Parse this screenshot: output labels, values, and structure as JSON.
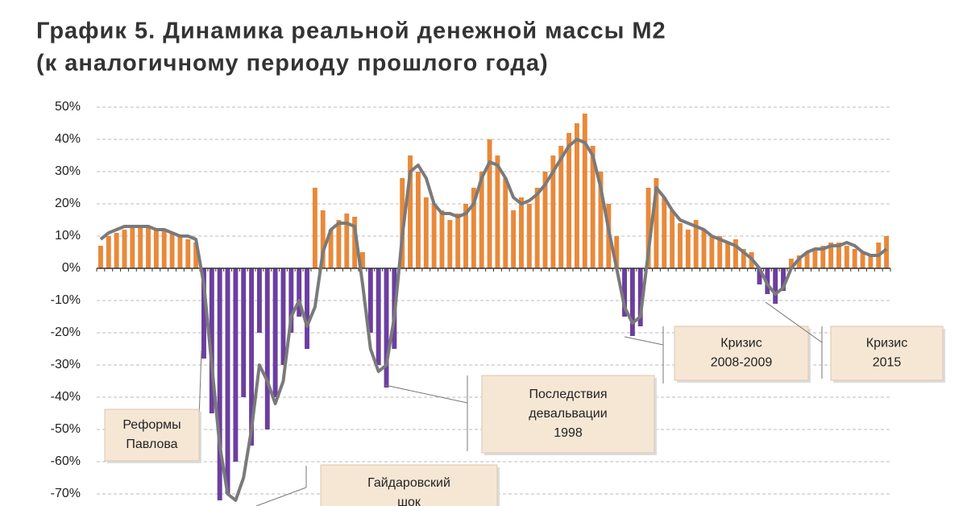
{
  "chart_data": {
    "type": "bar",
    "title": "График 5. Динамика реальной денежной массы М2",
    "subtitle": "(к аналогичному  периоду прошлого года)",
    "categories": [
      null,
      null,
      null,
      null,
      null,
      null,
      null,
      null,
      null,
      null,
      null,
      null,
      null,
      null,
      null,
      null,
      null,
      null,
      null,
      null,
      null,
      null,
      null,
      null,
      null,
      null,
      null,
      null,
      null,
      null,
      null,
      null,
      null,
      null,
      null,
      null,
      null,
      null,
      null,
      null,
      null,
      null,
      null,
      null,
      null,
      null,
      null,
      null,
      null,
      null,
      null,
      null,
      null,
      null,
      null,
      null,
      null,
      null,
      null,
      null,
      null,
      null,
      null,
      null,
      null,
      null,
      null,
      null,
      null,
      null,
      null,
      null,
      null,
      null,
      null,
      null,
      null,
      null,
      null,
      null,
      null,
      null,
      null,
      null,
      null,
      null,
      null,
      null,
      null,
      null,
      null,
      null,
      null,
      null,
      null,
      null,
      null,
      null,
      null,
      null
    ],
    "bars": {
      "positive_color": "#e8893a",
      "negative_color": "#6b3fa0",
      "values": [
        7,
        10,
        11,
        12,
        13,
        13,
        13,
        12,
        12,
        11,
        10,
        9,
        8,
        -28,
        -45,
        -72,
        -70,
        -60,
        -40,
        -55,
        -20,
        -50,
        -40,
        -30,
        -20,
        -15,
        -25,
        25,
        18,
        12,
        15,
        17,
        16,
        5,
        -20,
        -30,
        -37,
        -25,
        28,
        35,
        30,
        22,
        20,
        18,
        15,
        17,
        20,
        25,
        30,
        40,
        35,
        28,
        18,
        22,
        20,
        25,
        30,
        35,
        38,
        42,
        45,
        48,
        38,
        30,
        20,
        10,
        -15,
        -21,
        -18,
        25,
        28,
        22,
        18,
        14,
        12,
        15,
        12,
        10,
        10,
        8,
        9,
        6,
        5,
        -5,
        -8,
        -11,
        -7,
        3,
        4,
        5,
        6,
        7,
        8,
        8,
        7,
        6,
        5,
        4,
        8,
        10
      ]
    },
    "line": {
      "color": "#7a7a7a",
      "values": [
        9,
        11,
        12,
        13,
        13,
        13,
        13,
        12,
        12,
        11,
        10,
        10,
        9,
        -5,
        -30,
        -55,
        -70,
        -72,
        -65,
        -50,
        -30,
        -35,
        -42,
        -35,
        -15,
        -10,
        -18,
        -12,
        5,
        12,
        14,
        14,
        13,
        -5,
        -25,
        -32,
        -30,
        -15,
        10,
        30,
        32,
        28,
        20,
        17,
        17,
        16,
        17,
        20,
        28,
        33,
        32,
        28,
        22,
        20,
        21,
        23,
        26,
        30,
        34,
        38,
        40,
        39,
        35,
        25,
        12,
        0,
        -12,
        -17,
        -15,
        5,
        25,
        22,
        18,
        15,
        14,
        13,
        12,
        10,
        9,
        8,
        7,
        5,
        3,
        0,
        -5,
        -8,
        -6,
        0,
        3,
        5,
        6,
        6,
        7,
        7,
        8,
        7,
        5,
        4,
        4,
        6
      ]
    },
    "ylim": [
      -73.5,
      52
    ],
    "yticks": [
      {
        "value": 50,
        "label": "50%"
      },
      {
        "value": 40,
        "label": "40%"
      },
      {
        "value": 30,
        "label": "30%"
      },
      {
        "value": 20,
        "label": "20%"
      },
      {
        "value": 10,
        "label": "10%"
      },
      {
        "value": 0,
        "label": "0%"
      },
      {
        "value": -10,
        "label": "-10%"
      },
      {
        "value": -20,
        "label": "-20%"
      },
      {
        "value": -30,
        "label": "-30%"
      },
      {
        "value": -40,
        "label": "-40%"
      },
      {
        "value": -50,
        "label": "-50%"
      },
      {
        "value": -60,
        "label": "-60%"
      },
      {
        "value": -70,
        "label": "-70%"
      }
    ],
    "grid": true,
    "annotations": [
      {
        "lines": [
          "Реформы",
          "Павлова"
        ]
      },
      {
        "lines": [
          "Гайдаровский",
          "шок"
        ]
      },
      {
        "lines": [
          "Последствия",
          "девальвации",
          "1998"
        ]
      },
      {
        "lines": [
          "Кризис",
          "2008-2009"
        ]
      },
      {
        "lines": [
          "Кризис",
          "2015"
        ]
      }
    ]
  }
}
